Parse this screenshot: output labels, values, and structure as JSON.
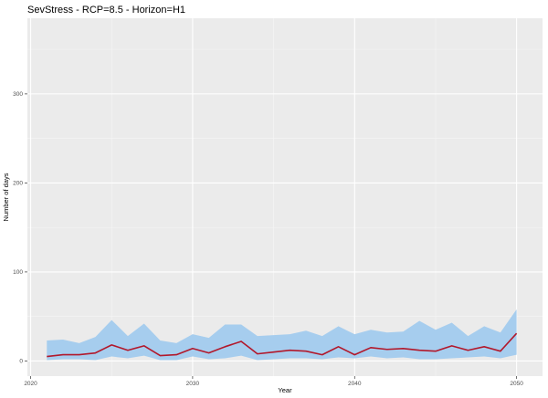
{
  "chart_data": {
    "type": "area",
    "title": "SevStress - RCP=8.5 - Horizon=H1",
    "xlabel": "Year",
    "ylabel": "Number of days",
    "xlim": [
      2019.8,
      2051.6
    ],
    "ylim": [
      -17,
      385
    ],
    "x_ticks": [
      2020,
      2030,
      2040,
      2050
    ],
    "y_ticks": [
      0,
      100,
      200,
      300
    ],
    "grid": true,
    "legend": "none",
    "x": [
      2021,
      2022,
      2023,
      2024,
      2025,
      2026,
      2027,
      2028,
      2029,
      2030,
      2031,
      2032,
      2033,
      2034,
      2035,
      2036,
      2037,
      2038,
      2039,
      2040,
      2041,
      2042,
      2043,
      2044,
      2045,
      2046,
      2047,
      2048,
      2049,
      2050
    ],
    "series": [
      {
        "type": "band",
        "color": "#a6cdee",
        "upper": [
          23,
          24,
          20,
          27,
          46,
          28,
          42,
          23,
          20,
          30,
          26,
          41,
          41,
          28,
          29,
          30,
          34,
          28,
          39,
          30,
          35,
          32,
          33,
          45,
          35,
          43,
          28,
          39,
          32,
          58
        ],
        "lower": [
          1,
          2,
          2,
          1,
          5,
          3,
          6,
          1,
          1,
          5,
          2,
          3,
          6,
          1,
          2,
          3,
          3,
          2,
          4,
          3,
          5,
          3,
          4,
          2,
          2,
          3,
          4,
          5,
          3,
          7
        ]
      },
      {
        "type": "line",
        "color": "#b2182b",
        "values": [
          5,
          7,
          7,
          9,
          18,
          12,
          17,
          6,
          7,
          14,
          9,
          16,
          22,
          8,
          10,
          12,
          11,
          7,
          16,
          7,
          15,
          13,
          14,
          12,
          11,
          17,
          12,
          16,
          11,
          31
        ]
      }
    ],
    "colors": {
      "panel_background": "#ebebeb",
      "grid_major": "#ffffff",
      "grid_minor": "#f5f5f5",
      "tick_color": "#333333"
    }
  }
}
